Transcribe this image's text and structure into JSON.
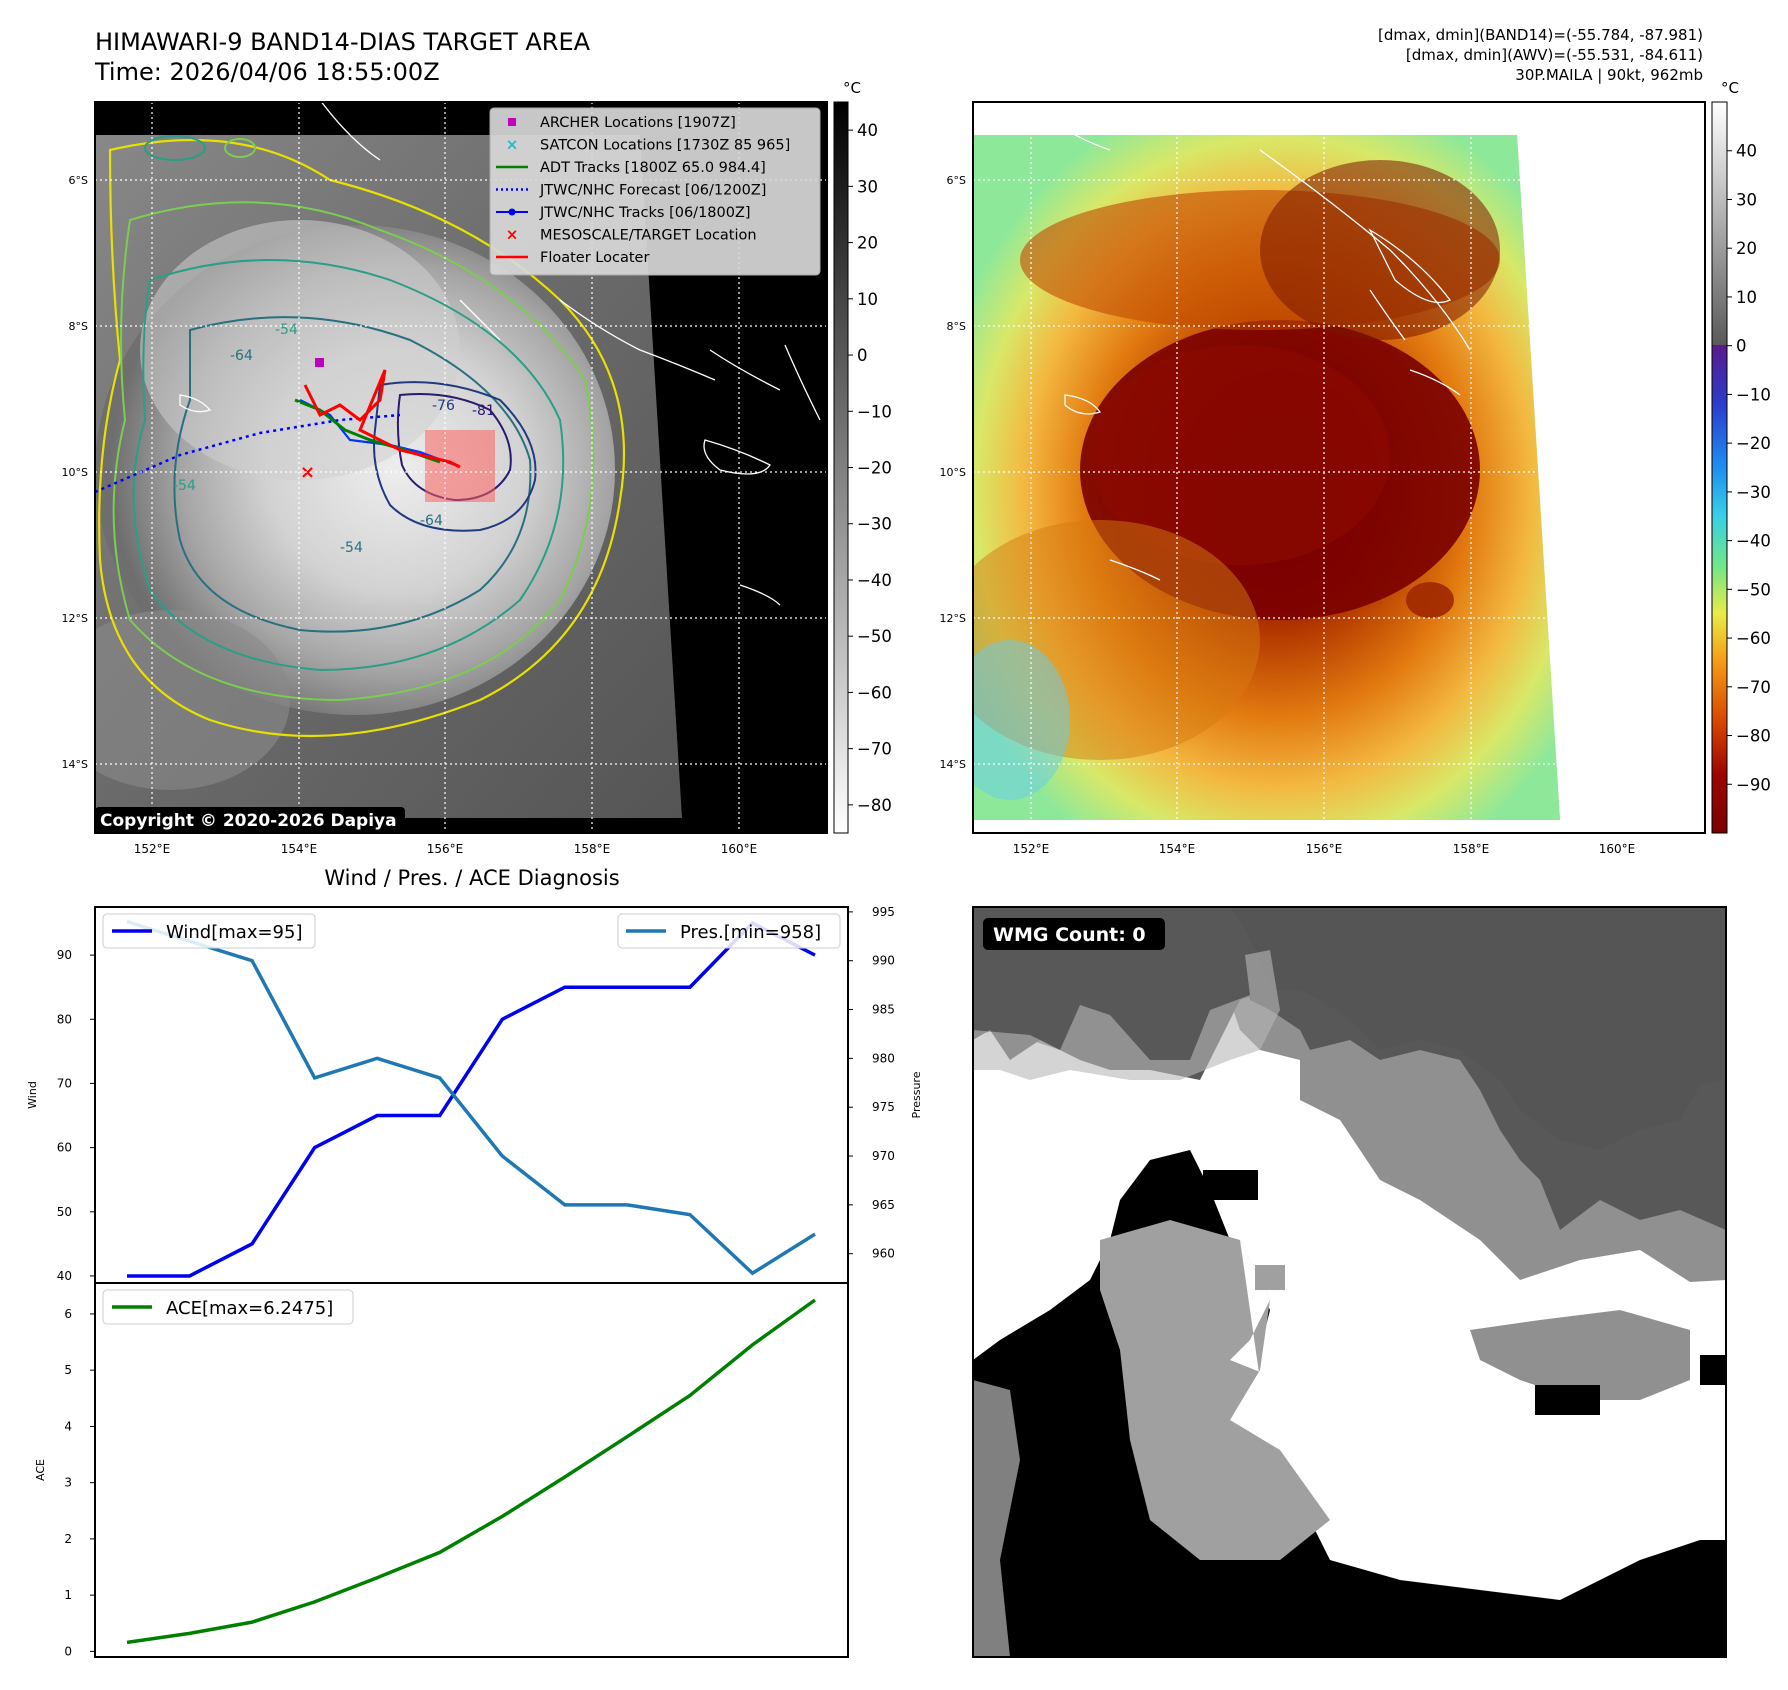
{
  "header": {
    "title_line1": "HIMAWARI-9 BAND14-DIAS TARGET AREA",
    "title_line2": "Time: 2026/04/06 18:55:00Z",
    "info_line1": "[dmax, dmin](BAND14)=(-55.784, -87.981)",
    "info_line2": "[dmax, dmin](AWV)=(-55.531, -84.611)",
    "info_line3": "30P.MAILA | 90kt, 962mb"
  },
  "panel_ir": {
    "unit": "°C",
    "colorbar_ticks": [
      "40",
      "30",
      "20",
      "10",
      "0",
      "−10",
      "−20",
      "−30",
      "−40",
      "−50",
      "−60",
      "−70",
      "−80"
    ],
    "colorbar_values": [
      40,
      30,
      20,
      10,
      0,
      -10,
      -20,
      -30,
      -40,
      -50,
      -60,
      -70,
      -80
    ],
    "colorbar_range": [
      45,
      -85
    ],
    "lat_labels": [
      "6°S",
      "8°S",
      "10°S",
      "12°S",
      "14°S"
    ],
    "lon_labels": [
      "152°E",
      "154°E",
      "156°E",
      "158°E",
      "160°E"
    ],
    "copyright": "Copyright © 2020-2026 Dapiya",
    "contour_labels": [
      "-54",
      "-54",
      "-54",
      "-76",
      "-81",
      "-64",
      "-64"
    ],
    "legend": [
      {
        "label": "ARCHER Locations [1907Z]",
        "color": "#c000c0",
        "marker": "square"
      },
      {
        "label": "SATCON Locations [1730Z 85 965]",
        "color": "#17becf",
        "marker": "x"
      },
      {
        "label": "ADT Tracks [1800Z 65.0 984.4]",
        "color": "#008000",
        "marker": "line"
      },
      {
        "label": "JTWC/NHC Forecast [06/1200Z]",
        "color": "#0000ff",
        "marker": "dotted"
      },
      {
        "label": "JTWC/NHC Tracks [06/1800Z]",
        "color": "#0000ff",
        "marker": "line-dot"
      },
      {
        "label": "MESOSCALE/TARGET Location",
        "color": "#ff0000",
        "marker": "x"
      },
      {
        "label": "Floater Locater",
        "color": "#ff0000",
        "marker": "line"
      }
    ]
  },
  "panel_awv": {
    "unit": "°C",
    "colorbar_ticks": [
      "40",
      "30",
      "20",
      "10",
      "0",
      "−10",
      "−20",
      "−30",
      "−40",
      "−50",
      "−60",
      "−70",
      "−80",
      "−90"
    ],
    "colorbar_values": [
      40,
      30,
      20,
      10,
      0,
      -10,
      -20,
      -30,
      -40,
      -50,
      -60,
      -70,
      -80,
      -90
    ],
    "colorbar_range": [
      50,
      -100
    ],
    "lat_labels": [
      "6°S",
      "8°S",
      "10°S",
      "12°S",
      "14°S"
    ],
    "lon_labels": [
      "152°E",
      "154°E",
      "156°E",
      "158°E",
      "160°E"
    ]
  },
  "panel_wmg": {
    "badge": "WMG Count: 0"
  },
  "chart_data": [
    {
      "type": "line",
      "title": "Wind / Pres. / ACE Diagnosis",
      "ylabel": "Wind",
      "y2label": "Pressure",
      "ylim": [
        38.9,
        97.5
      ],
      "y2lim": [
        957,
        995.5
      ],
      "y_ticks": [
        40,
        50,
        60,
        70,
        80,
        90
      ],
      "y2_ticks": [
        960,
        965,
        970,
        975,
        980,
        985,
        990,
        995
      ],
      "x": [
        0,
        1,
        2,
        3,
        4,
        5,
        6,
        7,
        8,
        9,
        10,
        11
      ],
      "series": [
        {
          "name": "Wind[max=95]",
          "axis": "left",
          "color": "#0000ee",
          "values": [
            40,
            40,
            45,
            60,
            65,
            65,
            80,
            85,
            85,
            85,
            95,
            90
          ]
        },
        {
          "name": "Pres.[min=958]",
          "axis": "right",
          "color": "#1f77b4",
          "values": [
            994,
            992,
            990,
            978,
            980,
            978,
            970,
            965,
            965,
            964,
            958,
            962
          ]
        }
      ]
    },
    {
      "type": "line",
      "ylabel": "ACE",
      "ylim": [
        -0.1,
        6.55
      ],
      "y_ticks": [
        0,
        1,
        2,
        3,
        4,
        5,
        6
      ],
      "x": [
        0,
        1,
        2,
        3,
        4,
        5,
        6,
        7,
        8,
        9,
        10,
        11
      ],
      "series": [
        {
          "name": "ACE[max=6.2475]",
          "color": "#008000",
          "values": [
            0.16,
            0.32,
            0.52,
            0.88,
            1.31,
            1.76,
            2.4,
            3.1,
            3.82,
            4.55,
            5.45,
            6.2475
          ]
        }
      ]
    }
  ]
}
